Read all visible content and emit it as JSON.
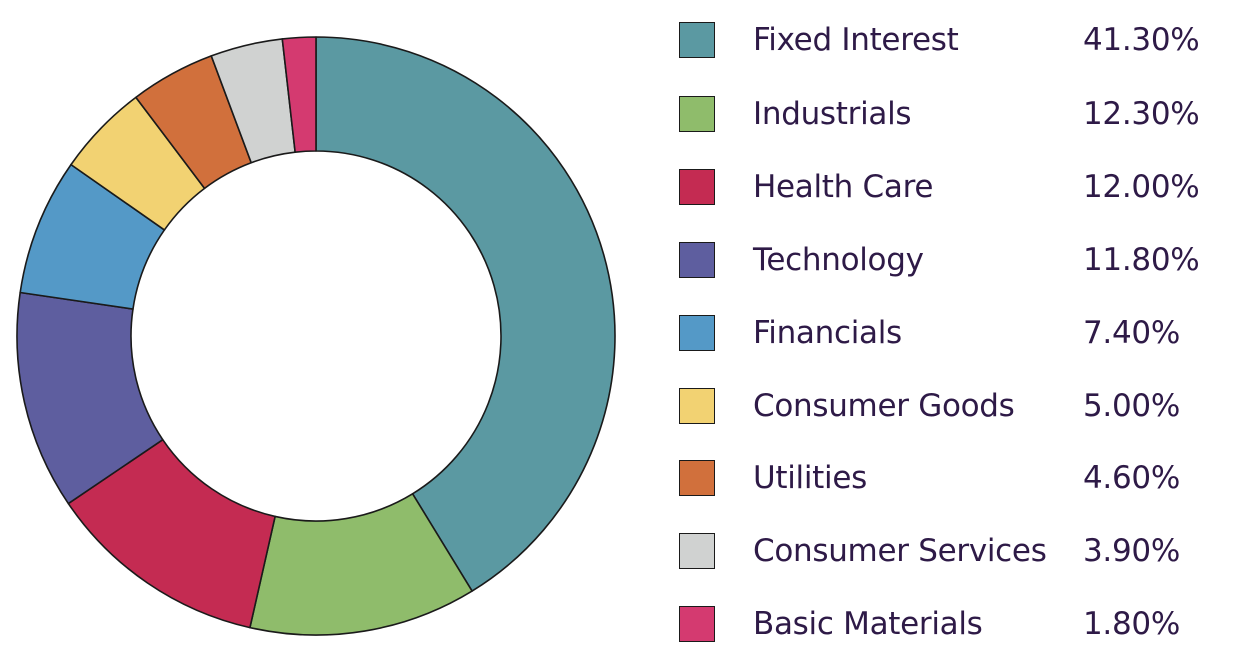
{
  "chart_data": {
    "type": "pie",
    "subtype": "donut",
    "title": "",
    "start_angle_deg": 0,
    "direction": "clockwise",
    "legend_position": "right",
    "categories": [
      "Fixed Interest",
      "Industrials",
      "Health Care",
      "Technology",
      "Financials",
      "Consumer Goods",
      "Utilities",
      "Consumer Services",
      "Basic Materials"
    ],
    "values": [
      41.3,
      12.3,
      12.0,
      11.8,
      7.4,
      5.0,
      4.6,
      3.9,
      1.8
    ],
    "value_labels": [
      "41.30%",
      "12.30%",
      "12.00%",
      "11.80%",
      "7.40%",
      "5.00%",
      "4.60%",
      "3.90%",
      "1.80%"
    ],
    "colors": [
      "#5b99a2",
      "#8fbc6b",
      "#c42b52",
      "#5e5e9f",
      "#5499c7",
      "#f2d272",
      "#d1703c",
      "#d0d2d1",
      "#d43a70"
    ],
    "unit": "%"
  },
  "legend": {
    "items": [
      {
        "label": "Fixed Interest",
        "value": "41.30%",
        "color": "#5b99a2"
      },
      {
        "label": "Industrials",
        "value": "12.30%",
        "color": "#8fbc6b"
      },
      {
        "label": "Health Care",
        "value": "12.00%",
        "color": "#c42b52"
      },
      {
        "label": "Technology",
        "value": "11.80%",
        "color": "#5e5e9f"
      },
      {
        "label": "Financials",
        "value": "7.40%",
        "color": "#5499c7"
      },
      {
        "label": "Consumer Goods",
        "value": "5.00%",
        "color": "#f2d272"
      },
      {
        "label": "Utilities",
        "value": "4.60%",
        "color": "#d1703c"
      },
      {
        "label": "Consumer Services",
        "value": "3.90%",
        "color": "#d0d2d1"
      },
      {
        "label": "Basic Materials",
        "value": "1.80%",
        "color": "#d43a70"
      }
    ]
  },
  "colors": {
    "text": "#2e1a47",
    "outline": "#1a1a1a",
    "background": "#ffffff"
  }
}
